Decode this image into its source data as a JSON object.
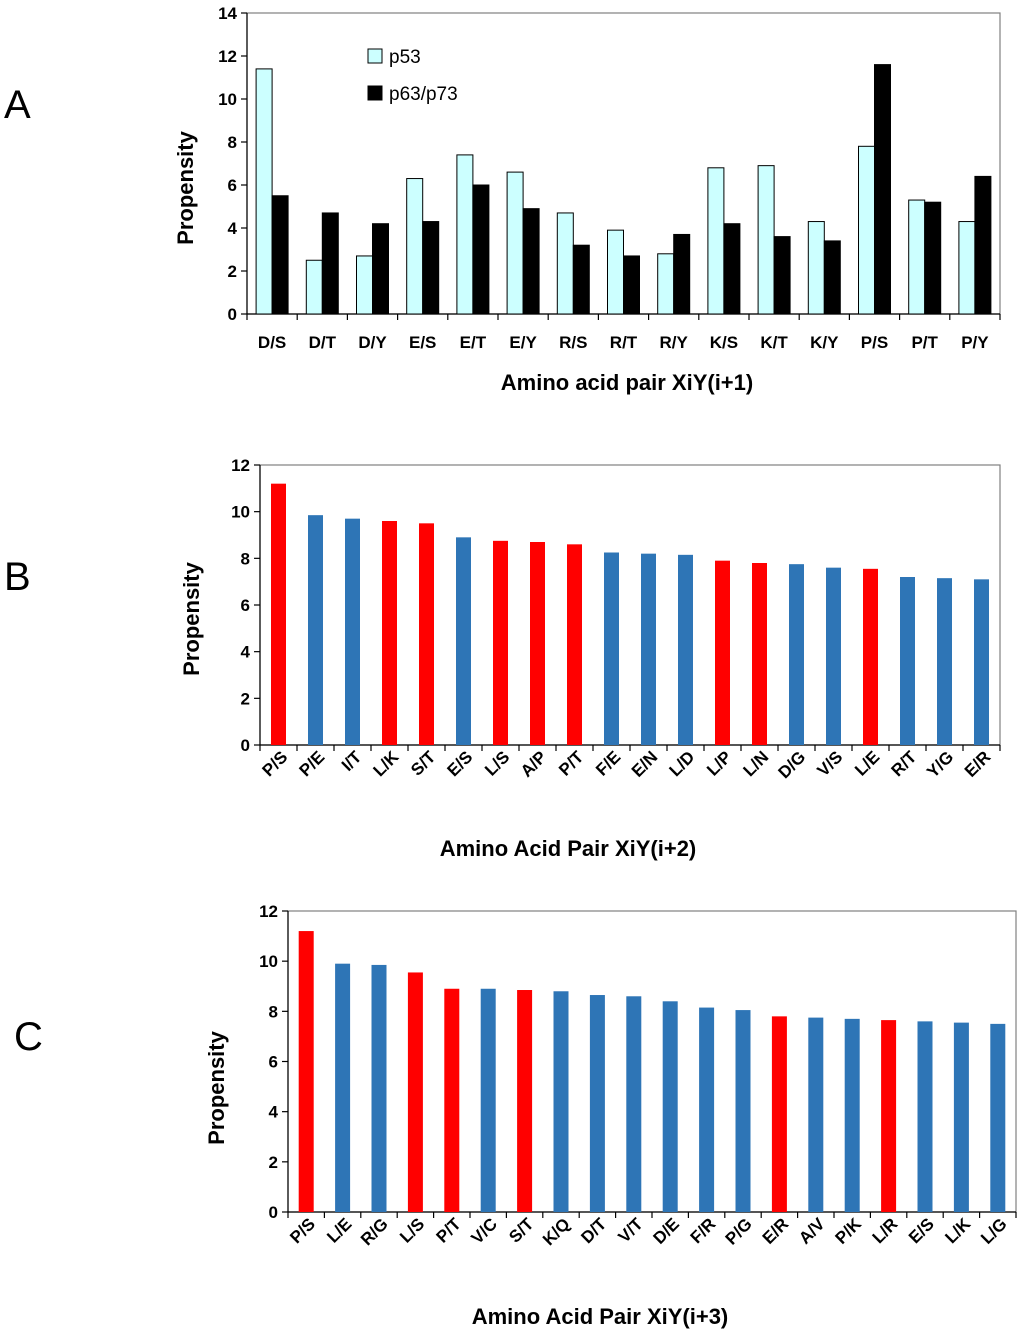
{
  "colors": {
    "p53": "#ccffff",
    "p63p73": "#000000",
    "red": "#ff0000",
    "blue": "#2e75b6",
    "axis": "#808080"
  },
  "chart_data": [
    {
      "panel": "A",
      "type": "bar",
      "xlabel": "Amino acid pair XiY(i+1)",
      "ylabel": "Propensity",
      "ylim": [
        0,
        14
      ],
      "yticks": [
        0,
        2,
        4,
        6,
        8,
        10,
        12,
        14
      ],
      "legend_position": "top-left",
      "categories": [
        "D/S",
        "D/T",
        "D/Y",
        "E/S",
        "E/T",
        "E/Y",
        "R/S",
        "R/T",
        "R/Y",
        "K/S",
        "K/T",
        "K/Y",
        "P/S",
        "P/T",
        "P/Y"
      ],
      "series": [
        {
          "name": "p53",
          "color": "#ccffff",
          "values": [
            11.4,
            2.5,
            2.7,
            6.3,
            7.4,
            6.6,
            4.7,
            3.9,
            2.8,
            6.8,
            6.9,
            4.3,
            7.8,
            5.3,
            4.3
          ]
        },
        {
          "name": "p63/p73",
          "color": "#000000",
          "values": [
            5.5,
            4.7,
            4.2,
            4.3,
            6.0,
            4.9,
            3.2,
            2.7,
            3.7,
            4.2,
            3.6,
            3.4,
            11.6,
            5.2,
            6.4
          ]
        }
      ]
    },
    {
      "panel": "B",
      "type": "bar",
      "xlabel": "Amino Acid Pair XiY(i+2)",
      "ylabel": "Propensity",
      "ylim": [
        0,
        12
      ],
      "yticks": [
        0,
        2,
        4,
        6,
        8,
        10,
        12
      ],
      "categories": [
        "P/S",
        "P/E",
        "I/T",
        "L/K",
        "S/T",
        "E/S",
        "L/S",
        "A/P",
        "P/T",
        "F/E",
        "E/N",
        "L/D",
        "L/P",
        "L/N",
        "D/G",
        "V/S",
        "L/E",
        "R/T",
        "Y/G",
        "E/R"
      ],
      "values": [
        11.2,
        9.85,
        9.7,
        9.6,
        9.5,
        8.9,
        8.75,
        8.7,
        8.6,
        8.25,
        8.2,
        8.15,
        7.9,
        7.8,
        7.75,
        7.6,
        7.55,
        7.2,
        7.15,
        7.1
      ],
      "bar_colors": [
        "red",
        "blue",
        "blue",
        "red",
        "red",
        "blue",
        "red",
        "red",
        "red",
        "blue",
        "blue",
        "blue",
        "red",
        "red",
        "blue",
        "blue",
        "red",
        "blue",
        "blue",
        "blue"
      ]
    },
    {
      "panel": "C",
      "type": "bar",
      "xlabel": "Amino Acid Pair XiY(i+3)",
      "ylabel": "Propensity",
      "ylim": [
        0,
        12
      ],
      "yticks": [
        0,
        2,
        4,
        6,
        8,
        10,
        12
      ],
      "categories": [
        "P/S",
        "L/E",
        "R/G",
        "L/S",
        "P/T",
        "V/C",
        "S/T",
        "K/Q",
        "D/T",
        "V/T",
        "D/E",
        "F/R",
        "P/G",
        "E/R",
        "A/V",
        "P/K",
        "L/R",
        "E/S",
        "L/K",
        "L/G"
      ],
      "values": [
        11.2,
        9.9,
        9.85,
        9.55,
        8.9,
        8.9,
        8.85,
        8.8,
        8.65,
        8.6,
        8.4,
        8.15,
        8.05,
        7.8,
        7.75,
        7.7,
        7.65,
        7.6,
        7.55,
        7.5
      ],
      "bar_colors": [
        "red",
        "blue",
        "blue",
        "red",
        "red",
        "blue",
        "red",
        "blue",
        "blue",
        "blue",
        "blue",
        "blue",
        "blue",
        "red",
        "blue",
        "blue",
        "red",
        "blue",
        "blue",
        "blue"
      ]
    }
  ]
}
